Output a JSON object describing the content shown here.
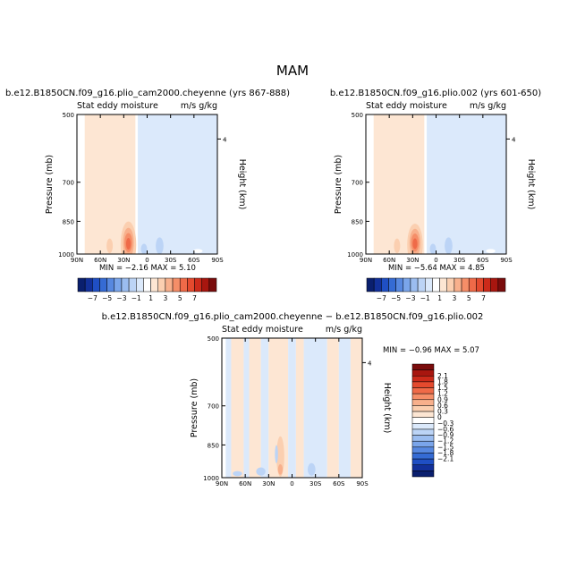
{
  "figure_title": "MAM",
  "colors": {
    "pos": [
      "#fde6d3",
      "#fbcfb0",
      "#f8b08c",
      "#f58e68",
      "#ef6a48",
      "#e44a2e",
      "#cc2a1a",
      "#a8160f",
      "#7a0c0c"
    ],
    "neg": [
      "#dbe9fb",
      "#bcd4f6",
      "#9bbdf0",
      "#7aa5ea",
      "#5788e0",
      "#356bd4",
      "#1f4fc4",
      "#12309a",
      "#0a1f6e"
    ],
    "line": "#000000"
  },
  "chart_data": [
    {
      "type": "heatmap",
      "title": "b.e12.B1850CN.f09_g16.plio_cam2000.cheyenne (yrs 867-888)",
      "left_label": "Stat eddy moisture",
      "right_label": "m/s g/kg",
      "ylabel": "Pressure (mb)",
      "ylabel_right": "Height (km)",
      "xticks": [
        "90N",
        "60N",
        "30N",
        "0",
        "30S",
        "60S",
        "90S"
      ],
      "xlim": [
        90,
        -90
      ],
      "yticks": [
        "500",
        "700",
        "850",
        "1000"
      ],
      "ylim": [
        1000,
        500
      ],
      "right_ticks": [
        "4"
      ],
      "stats": "MIN =   −2.16   MAX =   5.10",
      "bands": [
        {
          "lat": [
            90,
            80
          ],
          "level": 0
        },
        {
          "lat": [
            80,
            15
          ],
          "level": 1
        },
        {
          "lat": [
            15,
            12
          ],
          "level": 0
        },
        {
          "lat": [
            12,
            -90
          ],
          "level": -1
        }
      ],
      "blobs": [
        {
          "lat": 24,
          "p": 955,
          "dlat": 10,
          "dp": 220,
          "level": 2
        },
        {
          "lat": 24,
          "p": 945,
          "dlat": 7,
          "dp": 140,
          "level": 3
        },
        {
          "lat": 24,
          "p": 945,
          "dlat": 5,
          "dp": 90,
          "level": 4
        },
        {
          "lat": 24,
          "p": 950,
          "dlat": 3,
          "dp": 55,
          "level": 5
        },
        {
          "lat": 48,
          "p": 960,
          "dlat": 4,
          "dp": 70,
          "level": 2
        },
        {
          "lat": 4,
          "p": 975,
          "dlat": 4,
          "dp": 50,
          "level": -2
        },
        {
          "lat": -16,
          "p": 960,
          "dlat": 5,
          "dp": 80,
          "level": -2
        },
        {
          "lat": -65,
          "p": 985,
          "dlat": 6,
          "dp": 20,
          "level": 0
        }
      ]
    },
    {
      "type": "heatmap",
      "title": "b.e12.B1850CN.f09_g16.plio.002 (yrs 601-650)",
      "left_label": "Stat eddy moisture",
      "right_label": "m/s g/kg",
      "ylabel": "Pressure (mb)",
      "ylabel_right": "Height (km)",
      "xticks": [
        "90N",
        "60N",
        "30N",
        "0",
        "30S",
        "60S",
        "90S"
      ],
      "xlim": [
        90,
        -90
      ],
      "yticks": [
        "500",
        "700",
        "850",
        "1000"
      ],
      "ylim": [
        1000,
        500
      ],
      "right_ticks": [
        "4"
      ],
      "stats": "MIN =   −5.64   MAX =   4.85",
      "bands": [
        {
          "lat": [
            90,
            80
          ],
          "level": 0
        },
        {
          "lat": [
            80,
            15
          ],
          "level": 1
        },
        {
          "lat": [
            15,
            12
          ],
          "level": 0
        },
        {
          "lat": [
            12,
            -90
          ],
          "level": -1
        }
      ],
      "blobs": [
        {
          "lat": 27,
          "p": 955,
          "dlat": 10,
          "dp": 200,
          "level": 2
        },
        {
          "lat": 27,
          "p": 945,
          "dlat": 7,
          "dp": 130,
          "level": 3
        },
        {
          "lat": 27,
          "p": 945,
          "dlat": 5,
          "dp": 85,
          "level": 4
        },
        {
          "lat": 27,
          "p": 950,
          "dlat": 3,
          "dp": 50,
          "level": 5
        },
        {
          "lat": 50,
          "p": 960,
          "dlat": 4,
          "dp": 70,
          "level": 2
        },
        {
          "lat": 4,
          "p": 975,
          "dlat": 4,
          "dp": 50,
          "level": -2
        },
        {
          "lat": -16,
          "p": 960,
          "dlat": 5,
          "dp": 80,
          "level": -2
        },
        {
          "lat": -70,
          "p": 985,
          "dlat": 6,
          "dp": 20,
          "level": 0
        }
      ]
    },
    {
      "type": "heatmap",
      "title": "b.e12.B1850CN.f09_g16.plio_cam2000.cheyenne − b.e12.B1850CN.f09_g16.plio.002",
      "left_label": "Stat eddy moisture",
      "right_label": "m/s g/kg",
      "ylabel": "Pressure (mb)",
      "ylabel_right": "Height (km)",
      "xticks": [
        "90N",
        "60N",
        "30N",
        "0",
        "30S",
        "60S",
        "90S"
      ],
      "xlim": [
        90,
        -90
      ],
      "yticks": [
        "500",
        "700",
        "850",
        "1000"
      ],
      "ylim": [
        1000,
        500
      ],
      "right_ticks": [
        "4"
      ],
      "stats": "MIN =   −0.96   MAX =   5.07",
      "bands": [
        {
          "lat": [
            90,
            85
          ],
          "level": 0
        },
        {
          "lat": [
            85,
            78
          ],
          "level": -1
        },
        {
          "lat": [
            78,
            62
          ],
          "level": 1
        },
        {
          "lat": [
            62,
            55
          ],
          "level": -1
        },
        {
          "lat": [
            55,
            40
          ],
          "level": 1
        },
        {
          "lat": [
            40,
            30
          ],
          "level": -1
        },
        {
          "lat": [
            30,
            5
          ],
          "level": 1
        },
        {
          "lat": [
            5,
            -5
          ],
          "level": -1
        },
        {
          "lat": [
            -5,
            -15
          ],
          "level": 1
        },
        {
          "lat": [
            -15,
            -45
          ],
          "level": -1
        },
        {
          "lat": [
            -45,
            -60
          ],
          "level": 1
        },
        {
          "lat": [
            -60,
            -75
          ],
          "level": -1
        },
        {
          "lat": [
            -75,
            -90
          ],
          "level": 1
        }
      ],
      "blobs": [
        {
          "lat": 15,
          "p": 900,
          "dlat": 5,
          "dp": 180,
          "level": 2
        },
        {
          "lat": 15,
          "p": 960,
          "dlat": 3,
          "dp": 50,
          "level": 3
        },
        {
          "lat": 20,
          "p": 890,
          "dlat": 2,
          "dp": 80,
          "level": -2
        },
        {
          "lat": 40,
          "p": 970,
          "dlat": 6,
          "dp": 40,
          "level": -2
        },
        {
          "lat": 70,
          "p": 980,
          "dlat": 6,
          "dp": 25,
          "level": -2
        },
        {
          "lat": -25,
          "p": 960,
          "dlat": 5,
          "dp": 60,
          "level": -2
        }
      ]
    }
  ],
  "colorbar_top": {
    "labels": [
      "−7",
      "−5",
      "−3",
      "−1",
      "1",
      "3",
      "5",
      "7"
    ]
  },
  "colorbar_diff": {
    "labels": [
      "2.1",
      "1.8",
      "1.5",
      "1.2",
      "0.9",
      "0.6",
      "0.3",
      "0",
      "−0.3",
      "−0.6",
      "−0.9",
      "−1.2",
      "−1.5",
      "−1.8",
      "−2.1"
    ]
  }
}
